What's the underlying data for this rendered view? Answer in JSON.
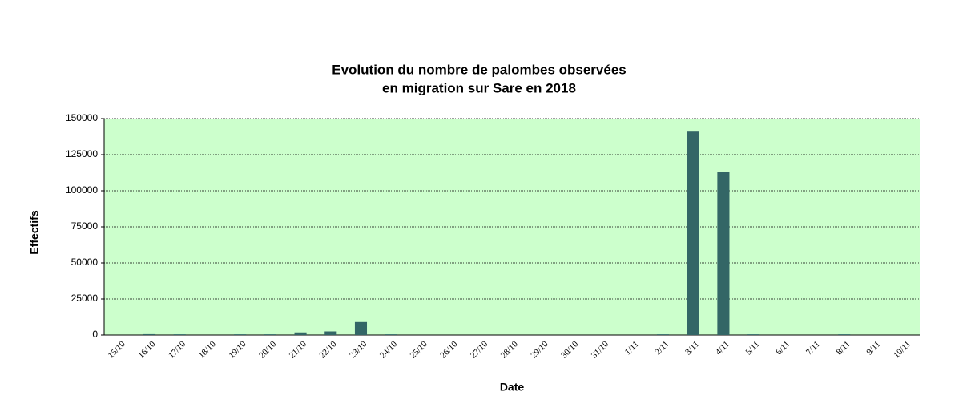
{
  "chart_data": {
    "type": "bar",
    "title": [
      "Evolution du nombre de palombes observées",
      "en migration sur Sare en 2018"
    ],
    "x_label": "Date",
    "y_label": "Effectifs",
    "categories": [
      "15/10",
      "16/10",
      "17/10",
      "18/10",
      "19/10",
      "20/10",
      "21/10",
      "22/10",
      "23/10",
      "24/10",
      "25/10",
      "26/10",
      "27/10",
      "28/10",
      "29/10",
      "30/10",
      "31/10",
      "1/11",
      "2/11",
      "3/11",
      "4/11",
      "5/11",
      "6/11",
      "7/11",
      "8/11",
      "9/11",
      "10/11"
    ],
    "values": [
      0,
      600,
      500,
      0,
      500,
      500,
      1800,
      2500,
      9000,
      500,
      0,
      0,
      0,
      0,
      0,
      0,
      0,
      0,
      500,
      141000,
      113000,
      500,
      0,
      0,
      500,
      0,
      0
    ],
    "color": "#336666",
    "background": "#ccffcc",
    "ylim": [
      0,
      150000
    ],
    "yticks": [
      0,
      25000,
      50000,
      75000,
      100000,
      125000,
      150000
    ],
    "grid": true
  }
}
